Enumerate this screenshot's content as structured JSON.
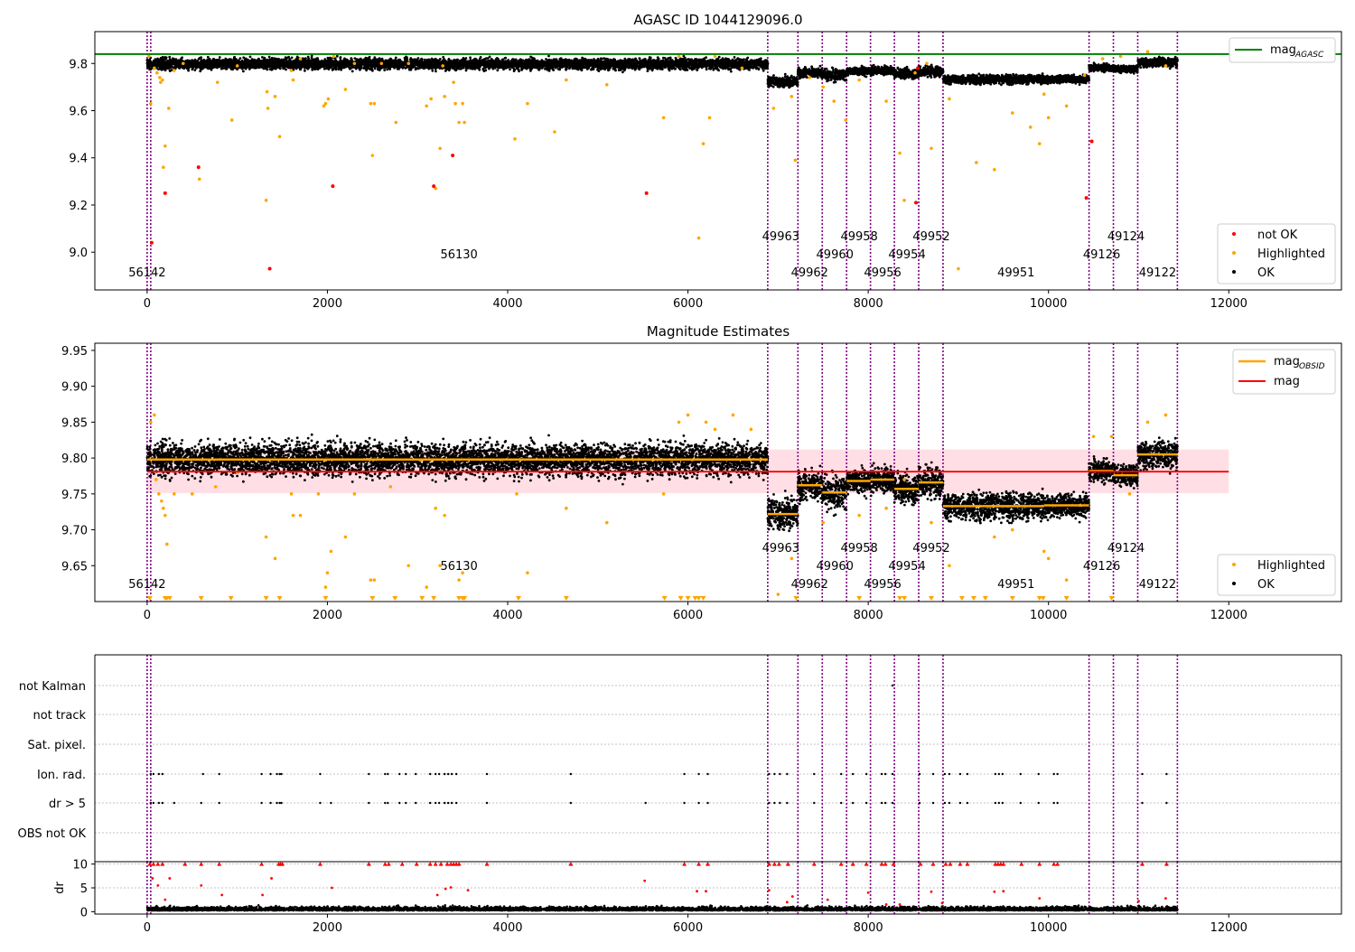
{
  "figure": {
    "title_top": "AGASC ID 1044129096.0",
    "title_mid": "Magnitude Estimates"
  },
  "colors": {
    "ok": "#000000",
    "highlighted": "#ffa500",
    "not_ok": "#ff0000",
    "mag_agasc": "#008000",
    "mag": "#ff0000",
    "mag_obsid": "#ffa500",
    "obs_line": "#800080",
    "band": "#ffc0cb"
  },
  "chart_data": [
    {
      "type": "scatter",
      "title": "AGASC ID 1044129096.0",
      "xlim": [
        -580,
        13250
      ],
      "ylim": [
        8.84,
        9.935
      ],
      "xticks": [
        0,
        2000,
        4000,
        6000,
        8000,
        10000,
        12000
      ],
      "yticks": [
        9.0,
        9.2,
        9.4,
        9.6,
        9.8
      ],
      "mag_agasc": 9.84,
      "legend_lines": [
        {
          "name": "mag",
          "subscript": "AGASC"
        }
      ],
      "legend_points": [
        "not OK",
        "Highlighted",
        "OK"
      ],
      "obs_boundaries": [
        0,
        40,
        6885,
        7220,
        7490,
        7760,
        8025,
        8290,
        8560,
        8830,
        10450,
        10720,
        10990,
        11430
      ],
      "obs_labels": [
        {
          "text": "56142",
          "x": 0,
          "row": 2
        },
        {
          "text": "56130",
          "x": 3460,
          "row": 1
        },
        {
          "text": "49963",
          "x": 7030,
          "row": 0
        },
        {
          "text": "49962",
          "x": 7350,
          "row": 2
        },
        {
          "text": "49960",
          "x": 7630,
          "row": 1
        },
        {
          "text": "49958",
          "x": 7900,
          "row": 0
        },
        {
          "text": "49956",
          "x": 8160,
          "row": 2
        },
        {
          "text": "49954",
          "x": 8430,
          "row": 1
        },
        {
          "text": "49952",
          "x": 8700,
          "row": 0
        },
        {
          "text": "49951",
          "x": 9640,
          "row": 2
        },
        {
          "text": "49126",
          "x": 10590,
          "row": 1
        },
        {
          "text": "49124",
          "x": 10860,
          "row": 0
        },
        {
          "text": "49122",
          "x": 11210,
          "row": 2
        }
      ],
      "segments": [
        {
          "x0": 0,
          "x1": 6885,
          "mean": 9.798,
          "spread": 0.018
        },
        {
          "x0": 6885,
          "x1": 7220,
          "mean": 9.722,
          "spread": 0.018
        },
        {
          "x0": 7220,
          "x1": 7490,
          "mean": 9.762,
          "spread": 0.015
        },
        {
          "x0": 7490,
          "x1": 7760,
          "mean": 9.752,
          "spread": 0.018
        },
        {
          "x0": 7760,
          "x1": 8025,
          "mean": 9.768,
          "spread": 0.013
        },
        {
          "x0": 8025,
          "x1": 8290,
          "mean": 9.77,
          "spread": 0.015
        },
        {
          "x0": 8290,
          "x1": 8560,
          "mean": 9.757,
          "spread": 0.016
        },
        {
          "x0": 8560,
          "x1": 8830,
          "mean": 9.766,
          "spread": 0.017
        },
        {
          "x0": 8830,
          "x1": 9950,
          "mean": 9.733,
          "spread": 0.015
        },
        {
          "x0": 9950,
          "x1": 10450,
          "mean": 9.734,
          "spread": 0.013
        },
        {
          "x0": 10450,
          "x1": 10720,
          "mean": 9.782,
          "spread": 0.012
        },
        {
          "x0": 10720,
          "x1": 10990,
          "mean": 9.776,
          "spread": 0.011
        },
        {
          "x0": 10990,
          "x1": 11430,
          "mean": 9.805,
          "spread": 0.016
        }
      ],
      "highlighted_points": [
        [
          20,
          9.83
        ],
        [
          40,
          9.63
        ],
        [
          80,
          9.78
        ],
        [
          110,
          9.76
        ],
        [
          140,
          9.74
        ],
        [
          150,
          9.72
        ],
        [
          170,
          9.73
        ],
        [
          180,
          9.36
        ],
        [
          200,
          9.45
        ],
        [
          240,
          9.61
        ],
        [
          300,
          9.77
        ],
        [
          400,
          9.8
        ],
        [
          580,
          9.31
        ],
        [
          780,
          9.72
        ],
        [
          940,
          9.56
        ],
        [
          1000,
          9.79
        ],
        [
          1320,
          9.22
        ],
        [
          1330,
          9.68
        ],
        [
          1340,
          9.61
        ],
        [
          1420,
          9.66
        ],
        [
          1470,
          9.49
        ],
        [
          1600,
          9.77
        ],
        [
          1620,
          9.73
        ],
        [
          1700,
          9.82
        ],
        [
          1960,
          9.62
        ],
        [
          1980,
          9.63
        ],
        [
          2010,
          9.65
        ],
        [
          2070,
          9.83
        ],
        [
          2200,
          9.69
        ],
        [
          2300,
          9.8
        ],
        [
          2480,
          9.63
        ],
        [
          2500,
          9.41
        ],
        [
          2520,
          9.63
        ],
        [
          2600,
          9.8
        ],
        [
          2760,
          9.55
        ],
        [
          2900,
          9.8
        ],
        [
          3100,
          9.62
        ],
        [
          3150,
          9.65
        ],
        [
          3200,
          9.27
        ],
        [
          3250,
          9.44
        ],
        [
          3280,
          9.79
        ],
        [
          3300,
          9.66
        ],
        [
          3400,
          9.72
        ],
        [
          3420,
          9.63
        ],
        [
          3460,
          9.55
        ],
        [
          3500,
          9.63
        ],
        [
          3520,
          9.55
        ],
        [
          4080,
          9.48
        ],
        [
          4220,
          9.63
        ],
        [
          4520,
          9.51
        ],
        [
          4650,
          9.73
        ],
        [
          5100,
          9.71
        ],
        [
          5730,
          9.57
        ],
        [
          5900,
          9.83
        ],
        [
          6120,
          9.06
        ],
        [
          6170,
          9.46
        ],
        [
          6240,
          9.57
        ],
        [
          6300,
          9.83
        ],
        [
          6600,
          9.78
        ],
        [
          6950,
          9.61
        ],
        [
          7150,
          9.66
        ],
        [
          7190,
          9.39
        ],
        [
          7350,
          9.74
        ],
        [
          7500,
          9.7
        ],
        [
          7620,
          9.64
        ],
        [
          7750,
          9.56
        ],
        [
          7900,
          9.73
        ],
        [
          8200,
          9.64
        ],
        [
          8350,
          9.42
        ],
        [
          8400,
          9.22
        ],
        [
          8520,
          9.76
        ],
        [
          8650,
          9.8
        ],
        [
          8700,
          9.44
        ],
        [
          8900,
          9.65
        ],
        [
          9000,
          8.93
        ],
        [
          9200,
          9.38
        ],
        [
          9400,
          9.35
        ],
        [
          9600,
          9.59
        ],
        [
          9800,
          9.53
        ],
        [
          9900,
          9.46
        ],
        [
          9950,
          9.67
        ],
        [
          10000,
          9.57
        ],
        [
          10200,
          9.62
        ],
        [
          10400,
          9.75
        ],
        [
          10600,
          9.82
        ],
        [
          10800,
          9.83
        ],
        [
          11100,
          9.85
        ],
        [
          11300,
          9.79
        ]
      ],
      "not_ok_points": [
        [
          50,
          9.04
        ],
        [
          200,
          9.25
        ],
        [
          570,
          9.36
        ],
        [
          2060,
          9.28
        ],
        [
          3180,
          9.28
        ],
        [
          3390,
          9.41
        ],
        [
          5540,
          9.25
        ],
        [
          8530,
          9.21
        ],
        [
          8550,
          9.78
        ],
        [
          10420,
          9.23
        ],
        [
          10480,
          9.47
        ]
      ],
      "clipped_points": [
        [
          1360,
          8.93
        ]
      ]
    },
    {
      "type": "scatter",
      "title": "Magnitude Estimates",
      "xlim": [
        -580,
        13250
      ],
      "ylim": [
        9.6,
        9.96
      ],
      "xticks": [
        0,
        2000,
        4000,
        6000,
        8000,
        10000,
        12000
      ],
      "yticks": [
        9.65,
        9.7,
        9.75,
        9.8,
        9.85,
        9.9,
        9.95
      ],
      "mag": 9.781,
      "band": [
        9.751,
        9.812
      ],
      "legend_lines": [
        {
          "name": "mag",
          "subscript": "OBSID"
        },
        {
          "name": "mag",
          "subscript": ""
        }
      ],
      "legend_points": [
        "Highlighted",
        "OK"
      ],
      "highlighted_points": [
        [
          40,
          9.85
        ],
        [
          80,
          9.86
        ],
        [
          100,
          9.77
        ],
        [
          130,
          9.75
        ],
        [
          160,
          9.74
        ],
        [
          180,
          9.73
        ],
        [
          200,
          9.72
        ],
        [
          220,
          9.68
        ],
        [
          300,
          9.75
        ],
        [
          500,
          9.75
        ],
        [
          760,
          9.76
        ],
        [
          1000,
          9.78
        ],
        [
          1320,
          9.69
        ],
        [
          1420,
          9.66
        ],
        [
          1600,
          9.75
        ],
        [
          1620,
          9.72
        ],
        [
          1700,
          9.72
        ],
        [
          1900,
          9.75
        ],
        [
          1980,
          9.62
        ],
        [
          2000,
          9.64
        ],
        [
          2040,
          9.67
        ],
        [
          2200,
          9.69
        ],
        [
          2300,
          9.75
        ],
        [
          2480,
          9.63
        ],
        [
          2520,
          9.63
        ],
        [
          2700,
          9.76
        ],
        [
          2900,
          9.65
        ],
        [
          3100,
          9.62
        ],
        [
          3200,
          9.73
        ],
        [
          3250,
          9.65
        ],
        [
          3300,
          9.72
        ],
        [
          3460,
          9.63
        ],
        [
          3500,
          9.64
        ],
        [
          4100,
          9.75
        ],
        [
          4220,
          9.64
        ],
        [
          4650,
          9.73
        ],
        [
          5100,
          9.71
        ],
        [
          5730,
          9.75
        ],
        [
          5900,
          9.85
        ],
        [
          6000,
          9.86
        ],
        [
          6200,
          9.85
        ],
        [
          6300,
          9.84
        ],
        [
          6500,
          9.86
        ],
        [
          6700,
          9.84
        ],
        [
          7000,
          9.61
        ],
        [
          7150,
          9.66
        ],
        [
          7500,
          9.71
        ],
        [
          7900,
          9.72
        ],
        [
          8200,
          9.73
        ],
        [
          8400,
          9.77
        ],
        [
          8700,
          9.71
        ],
        [
          8900,
          9.65
        ],
        [
          9400,
          9.69
        ],
        [
          9600,
          9.7
        ],
        [
          9950,
          9.67
        ],
        [
          10000,
          9.66
        ],
        [
          10200,
          9.63
        ],
        [
          10500,
          9.83
        ],
        [
          10700,
          9.83
        ],
        [
          10900,
          9.75
        ],
        [
          11100,
          9.85
        ],
        [
          11300,
          9.86
        ]
      ],
      "clipped_x": [
        30,
        200,
        220,
        250,
        600,
        930,
        1320,
        1470,
        1980,
        2500,
        2750,
        3050,
        3180,
        3460,
        3500,
        3520,
        4120,
        4650,
        5740,
        5920,
        6000,
        6080,
        6120,
        6170,
        7200,
        7900,
        8350,
        8400,
        8700,
        9040,
        9170,
        9300,
        9600,
        9900,
        9940,
        10200,
        10700
      ]
    },
    {
      "type": "scatter",
      "xlim": [
        -580,
        13250
      ],
      "xticks": [
        0,
        2000,
        4000,
        6000,
        8000,
        10000,
        12000
      ],
      "flag_labels": [
        "not Kalman",
        "not track",
        "Sat. pixel.",
        "Ion. rad.",
        "dr > 5",
        "OBS not OK"
      ],
      "ion_rad_x": [
        40,
        70,
        130,
        170,
        620,
        800,
        1270,
        1370,
        1440,
        1470,
        1490,
        1920,
        2460,
        2640,
        2670,
        2800,
        2870,
        2980,
        3140,
        3200,
        3240,
        3300,
        3340,
        3380,
        3430,
        3770,
        4700,
        5960,
        6120,
        6220,
        6900,
        6960,
        7020,
        7100,
        7400,
        7700,
        7830,
        7980,
        8150,
        8190,
        8270,
        8570,
        8720,
        8850,
        8900,
        9020,
        9100,
        9410,
        9450,
        9490,
        9690,
        9890,
        10060,
        10100,
        11040,
        11310
      ],
      "dr5_x": [
        40,
        70,
        130,
        170,
        300,
        600,
        800,
        1270,
        1370,
        1440,
        1470,
        1490,
        1920,
        2040,
        2460,
        2640,
        2670,
        2800,
        2870,
        2980,
        3140,
        3200,
        3240,
        3300,
        3340,
        3380,
        3430,
        3770,
        4700,
        5530,
        5960,
        6120,
        6220,
        6900,
        6960,
        7020,
        7100,
        7400,
        7700,
        7830,
        7980,
        8150,
        8190,
        8270,
        8570,
        8720,
        8850,
        8900,
        9020,
        9100,
        9410,
        9450,
        9490,
        9690,
        9890,
        10060,
        10100,
        11040,
        11310
      ],
      "not_kalman_x": [
        8270
      ]
    },
    {
      "type": "scatter",
      "xlim": [
        -580,
        13250
      ],
      "ylim": [
        -0.5,
        10.5
      ],
      "xticks": [
        0,
        2000,
        4000,
        6000,
        8000,
        10000,
        12000
      ],
      "yticks": [
        0,
        5,
        10
      ],
      "ylabel": "dr",
      "clip_value": 10,
      "clipped_x": [
        30,
        70,
        120,
        170,
        420,
        600,
        800,
        1270,
        1460,
        1480,
        1500,
        1920,
        2460,
        2640,
        2680,
        2830,
        2990,
        3140,
        3200,
        3260,
        3330,
        3370,
        3400,
        3430,
        3460,
        3770,
        4700,
        5960,
        6120,
        6220,
        6900,
        6960,
        7010,
        7110,
        7400,
        7700,
        7830,
        7980,
        8150,
        8190,
        8280,
        8580,
        8720,
        8860,
        8910,
        9020,
        9100,
        9410,
        9440,
        9470,
        9500,
        9700,
        9900,
        10060,
        10100,
        11040,
        11310
      ],
      "high_points": [
        [
          60,
          7
        ],
        [
          120,
          5.5
        ],
        [
          200,
          2.5
        ],
        [
          250,
          7
        ],
        [
          600,
          5.5
        ],
        [
          830,
          3.5
        ],
        [
          1280,
          3.5
        ],
        [
          1380,
          7
        ],
        [
          2050,
          5
        ],
        [
          3220,
          3.5
        ],
        [
          3310,
          4.8
        ],
        [
          3370,
          5.1
        ],
        [
          3560,
          4.5
        ],
        [
          5520,
          6.5
        ],
        [
          6100,
          4.3
        ],
        [
          6200,
          4.3
        ],
        [
          6900,
          4.5
        ],
        [
          7100,
          2
        ],
        [
          7160,
          3.2
        ],
        [
          7550,
          2.5
        ],
        [
          8000,
          4
        ],
        [
          8200,
          1.5
        ],
        [
          8350,
          1.5
        ],
        [
          8700,
          4.2
        ],
        [
          8820,
          1.8
        ],
        [
          9400,
          4.2
        ],
        [
          9500,
          4.3
        ],
        [
          9900,
          2.8
        ],
        [
          11000,
          2.2
        ],
        [
          11300,
          2.8
        ]
      ]
    }
  ]
}
